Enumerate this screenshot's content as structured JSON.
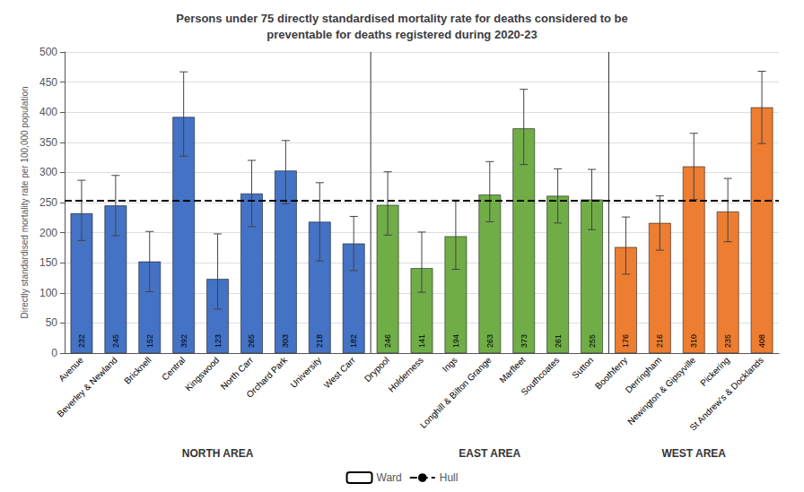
{
  "chart_data": {
    "type": "bar",
    "title": "Persons under 75 directly standardised mortality rate for deaths considered to be\npreventable for deaths registered during 2020-23",
    "ylabel": "Directly standardised mortality rate per 100,000 population",
    "categories": [
      "Avenue",
      "Beverley & Newland",
      "Bricknell",
      "Central",
      "Kingswood",
      "North Carr",
      "Orchard Park",
      "University",
      "West Carr",
      "Drypool",
      "Holderness",
      "Ings",
      "Longhill & Bilton Grange",
      "Marfleet",
      "Southcoates",
      "Sutton",
      "Boothferry",
      "Derringham",
      "Newington & Gipsyville",
      "Pickering",
      "St Andrew's & Docklands"
    ],
    "areas": [
      "NORTH AREA",
      "NORTH AREA",
      "NORTH AREA",
      "NORTH AREA",
      "NORTH AREA",
      "NORTH AREA",
      "NORTH AREA",
      "NORTH AREA",
      "NORTH AREA",
      "EAST AREA",
      "EAST AREA",
      "EAST AREA",
      "EAST AREA",
      "EAST AREA",
      "EAST AREA",
      "EAST AREA",
      "WEST AREA",
      "WEST AREA",
      "WEST AREA",
      "WEST AREA",
      "WEST AREA"
    ],
    "series": [
      {
        "name": "Ward",
        "type": "bar",
        "values": [
          232,
          245,
          152,
          392,
          123,
          265,
          303,
          218,
          182,
          246,
          141,
          194,
          263,
          373,
          261,
          255,
          176,
          216,
          310,
          235,
          408
        ],
        "err_low": [
          45,
          50,
          50,
          65,
          50,
          55,
          55,
          65,
          45,
          50,
          40,
          55,
          45,
          60,
          45,
          50,
          45,
          45,
          55,
          50,
          60
        ],
        "err_high": [
          55,
          50,
          50,
          75,
          75,
          55,
          50,
          65,
          45,
          55,
          60,
          60,
          55,
          65,
          45,
          50,
          50,
          45,
          55,
          55,
          60
        ],
        "colors": [
          "#4472C4",
          "#4472C4",
          "#4472C4",
          "#4472C4",
          "#4472C4",
          "#4472C4",
          "#4472C4",
          "#4472C4",
          "#4472C4",
          "#70AD47",
          "#70AD47",
          "#70AD47",
          "#70AD47",
          "#70AD47",
          "#70AD47",
          "#70AD47",
          "#ED7D31",
          "#ED7D31",
          "#ED7D31",
          "#ED7D31",
          "#ED7D31"
        ]
      },
      {
        "name": "Hull",
        "type": "hline",
        "value": 254,
        "color": "#000000",
        "line_style": "dashed"
      }
    ],
    "ylim": [
      0,
      500
    ],
    "yticks": [
      0,
      50,
      100,
      150,
      200,
      250,
      300,
      350,
      400,
      450,
      500
    ],
    "grid": true,
    "legend": "bottom",
    "data_labels": true
  }
}
